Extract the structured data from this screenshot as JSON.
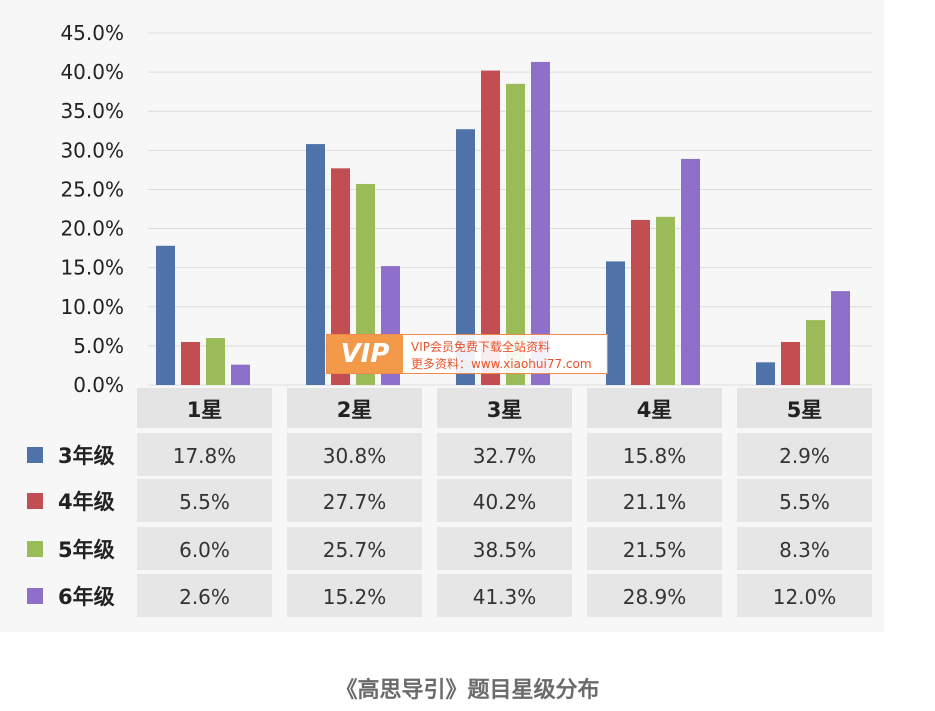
{
  "chart_data": {
    "type": "bar",
    "categories": [
      "1星",
      "2星",
      "3星",
      "4星",
      "5星"
    ],
    "series": [
      {
        "name": "3年级",
        "color": "#4f73a8",
        "values": [
          17.8,
          30.8,
          32.7,
          15.8,
          2.9
        ]
      },
      {
        "name": "4年级",
        "color": "#c24e52",
        "values": [
          5.5,
          27.7,
          40.2,
          21.1,
          5.5
        ]
      },
      {
        "name": "5年级",
        "color": "#9bbb59",
        "values": [
          6.0,
          25.7,
          38.5,
          21.5,
          8.3
        ]
      },
      {
        "name": "6年级",
        "color": "#8e6fc9",
        "values": [
          2.6,
          15.2,
          41.3,
          28.9,
          12.0
        ]
      }
    ],
    "table": [
      [
        "17.8%",
        "30.8%",
        "32.7%",
        "15.8%",
        "2.9%"
      ],
      [
        "5.5%",
        "27.7%",
        "40.2%",
        "21.1%",
        "5.5%"
      ],
      [
        "6.0%",
        "25.7%",
        "38.5%",
        "21.5%",
        "8.3%"
      ],
      [
        "2.6%",
        "15.2%",
        "41.3%",
        "28.9%",
        "12.0%"
      ]
    ],
    "yticks": [
      "0.0%",
      "5.0%",
      "10.0%",
      "15.0%",
      "20.0%",
      "25.0%",
      "30.0%",
      "35.0%",
      "40.0%",
      "45.0%"
    ],
    "ylim": [
      0,
      45
    ],
    "grid": true
  },
  "caption": "《高思导引》题目星级分布",
  "watermark": {
    "logo": "VIP",
    "line1": "VIP会员免费下载全站资料",
    "line2": "更多资料：www.xiaohui77.com"
  }
}
